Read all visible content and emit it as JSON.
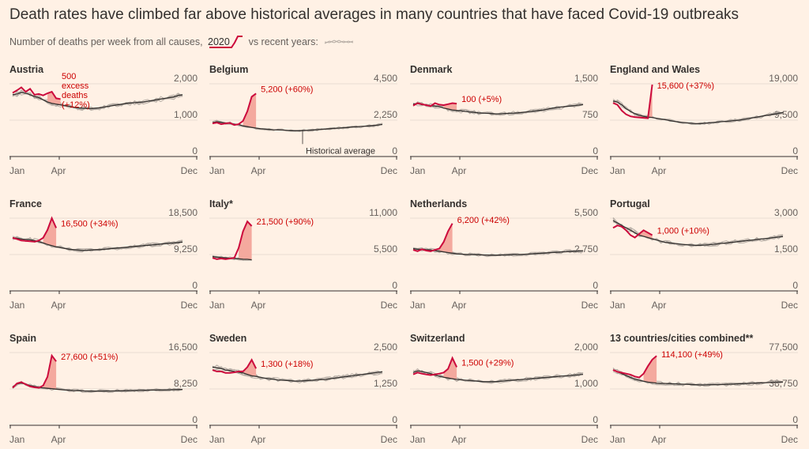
{
  "header": {
    "title": "Death rates have climbed far above historical averages in many countries that have faced Covid-19 outbreaks",
    "subtitle_pre": "Number of deaths per week from all causes,",
    "subtitle_year": "2020",
    "subtitle_post": "vs recent years:"
  },
  "colors": {
    "current": "#cc0a3c",
    "historic": "#b5aca4",
    "average": "#33302e",
    "excess_fill": "#f4a99e",
    "background": "#fff1e5"
  },
  "chart_data": [
    {
      "type": "line",
      "title": "Austria",
      "x_labels": [
        "Jan",
        "Apr",
        "Dec"
      ],
      "ylim": [
        0,
        2000
      ],
      "yticks": [
        "2,000",
        "1,000",
        "0"
      ],
      "annotation": "500\nexcess\ndeaths\n(+12%)",
      "annotation_pos": "top-left",
      "current": [
        1750,
        1820,
        1900,
        1780,
        1860,
        1700,
        1720,
        1680,
        1740,
        1780,
        1600,
        1580
      ],
      "average": [
        1700,
        1720,
        1760,
        1740,
        1700,
        1650,
        1620,
        1560,
        1500,
        1460,
        1440,
        1420,
        1400,
        1380,
        1350,
        1340,
        1330,
        1320,
        1320,
        1330,
        1340,
        1360,
        1380,
        1400,
        1420,
        1440,
        1460,
        1470,
        1480,
        1490,
        1500,
        1520,
        1540,
        1560,
        1580,
        1600,
        1620,
        1640,
        1680,
        1700
      ]
    },
    {
      "type": "line",
      "title": "Belgium",
      "x_labels": [
        "Jan",
        "Apr",
        "Dec"
      ],
      "ylim": [
        0,
        4500
      ],
      "yticks": [
        "4,500",
        "2,250",
        "0"
      ],
      "annotation": "5,200 (+60%)",
      "historic_label": "Historical average",
      "current": [
        2050,
        2100,
        2000,
        2050,
        2080,
        1950,
        2000,
        2200,
        2800,
        3700,
        3900
      ],
      "average": [
        2100,
        2150,
        2120,
        2080,
        2050,
        2000,
        1980,
        1900,
        1850,
        1800,
        1760,
        1720,
        1700,
        1680,
        1660,
        1650,
        1640,
        1620,
        1600,
        1600,
        1600,
        1610,
        1620,
        1640,
        1660,
        1680,
        1700,
        1720,
        1740,
        1760,
        1780,
        1800,
        1820,
        1840,
        1860,
        1880,
        1900,
        1920,
        1950,
        1980
      ]
    },
    {
      "type": "line",
      "title": "Denmark",
      "x_labels": [
        "Jan",
        "Apr",
        "Dec"
      ],
      "ylim": [
        0,
        1500
      ],
      "yticks": [
        "1,500",
        "750",
        "0"
      ],
      "annotation": "100 (+5%)",
      "current": [
        1050,
        1100,
        1080,
        1060,
        1040,
        1100,
        1070,
        1060,
        1080,
        1100,
        1090
      ],
      "average": [
        1080,
        1090,
        1070,
        1060,
        1050,
        1040,
        1030,
        1000,
        980,
        960,
        950,
        940,
        930,
        920,
        910,
        900,
        895,
        890,
        885,
        880,
        880,
        885,
        890,
        895,
        900,
        910,
        920,
        930,
        940,
        950,
        960,
        980,
        1000,
        1010,
        1020,
        1030,
        1040,
        1050,
        1060,
        1070
      ]
    },
    {
      "type": "line",
      "title": "England and Wales",
      "x_labels": [
        "Jan",
        "Apr",
        "Dec"
      ],
      "ylim": [
        0,
        19000
      ],
      "yticks": [
        "19,000",
        "9,500",
        "0"
      ],
      "annotation": "15,600 (+37%)",
      "current": [
        14000,
        13500,
        12000,
        11000,
        10500,
        10300,
        10200,
        10100,
        10000,
        18800
      ],
      "average": [
        14500,
        14200,
        13500,
        12500,
        11800,
        11200,
        10800,
        10500,
        10300,
        10200,
        10000,
        9800,
        9600,
        9400,
        9200,
        9000,
        8900,
        8800,
        8700,
        8600,
        8600,
        8700,
        8800,
        8900,
        9000,
        9100,
        9200,
        9300,
        9400,
        9500,
        9700,
        9900,
        10100,
        10300,
        10500,
        10700,
        10900,
        11100,
        11300,
        11500
      ]
    },
    {
      "type": "line",
      "title": "France",
      "x_labels": [
        "Jan",
        "Apr",
        "Dec"
      ],
      "ylim": [
        0,
        18500
      ],
      "yticks": [
        "18,500",
        "9,250",
        "0"
      ],
      "annotation": "16,500 (+34%)",
      "current": [
        13500,
        13200,
        12800,
        12700,
        12600,
        12500,
        12800,
        13500,
        15500,
        18500,
        16000
      ],
      "average": [
        13500,
        13400,
        13200,
        13100,
        13000,
        12800,
        12500,
        12200,
        11800,
        11500,
        11200,
        11000,
        10800,
        10600,
        10500,
        10400,
        10300,
        10300,
        10400,
        10500,
        10500,
        10600,
        10700,
        10800,
        10900,
        11000,
        11100,
        11200,
        11300,
        11400,
        11500,
        11600,
        11700,
        11800,
        11900,
        12000,
        12100,
        12200,
        12300,
        12400
      ]
    },
    {
      "type": "line",
      "title": "Italy*",
      "x_labels": [
        "Jan",
        "Apr",
        "Dec"
      ],
      "ylim": [
        0,
        11000
      ],
      "yticks": [
        "11,000",
        "5,500",
        "0"
      ],
      "annotation": "21,500 (+90%)",
      "current": [
        5000,
        4800,
        4900,
        4800,
        4900,
        5000,
        6500,
        9000,
        10500,
        9800
      ],
      "average": [
        5200,
        5100,
        5050,
        5000,
        4950,
        4900,
        4850,
        4800,
        4780,
        4700
      ]
    },
    {
      "type": "line",
      "title": "Netherlands",
      "x_labels": [
        "Jan",
        "Apr",
        "Dec"
      ],
      "ylim": [
        0,
        5500
      ],
      "yticks": [
        "5,500",
        "2,750",
        "0"
      ],
      "annotation": "6,200 (+42%)",
      "current": [
        3100,
        3000,
        3150,
        3050,
        3000,
        3100,
        3200,
        3700,
        4500,
        5100
      ],
      "average": [
        3200,
        3150,
        3150,
        3120,
        3100,
        3050,
        3000,
        2950,
        2900,
        2850,
        2800,
        2780,
        2760,
        2750,
        2740,
        2730,
        2720,
        2710,
        2700,
        2700,
        2710,
        2720,
        2730,
        2740,
        2750,
        2760,
        2780,
        2800,
        2820,
        2840,
        2860,
        2880,
        2900,
        2920,
        2940,
        2960,
        2980,
        3000,
        3020,
        3040
      ]
    },
    {
      "type": "line",
      "title": "Portugal",
      "x_labels": [
        "Jan",
        "Apr",
        "Dec"
      ],
      "ylim": [
        0,
        3000
      ],
      "yticks": [
        "3,000",
        "1,500",
        "0"
      ],
      "annotation": "1,000 (+10%)",
      "current": [
        2600,
        2700,
        2650,
        2500,
        2300,
        2200,
        2350,
        2500,
        2400,
        2300
      ],
      "average": [
        2900,
        2800,
        2700,
        2600,
        2500,
        2400,
        2300,
        2250,
        2200,
        2150,
        2100,
        2050,
        2000,
        1980,
        1960,
        1940,
        1920,
        1900,
        1890,
        1880,
        1880,
        1890,
        1900,
        1920,
        1940,
        1960,
        1980,
        2000,
        2020,
        2040,
        2060,
        2080,
        2100,
        2120,
        2140,
        2160,
        2180,
        2200,
        2220,
        2240
      ]
    },
    {
      "type": "line",
      "title": "Spain",
      "x_labels": [
        "Jan",
        "Apr",
        "Dec"
      ],
      "ylim": [
        0,
        16500
      ],
      "yticks": [
        "16,500",
        "8,250",
        "0"
      ],
      "annotation": "27,600 (+51%)",
      "current": [
        8500,
        9500,
        9800,
        9300,
        8800,
        8600,
        8500,
        9000,
        11000,
        15800,
        14500
      ],
      "average": [
        8700,
        9400,
        9600,
        9300,
        9000,
        8800,
        8600,
        8500,
        8400,
        8300,
        8200,
        8100,
        8000,
        7950,
        7900,
        7850,
        7800,
        7780,
        7760,
        7750,
        7750,
        7760,
        7780,
        7800,
        7820,
        7840,
        7860,
        7880,
        7900,
        7920,
        7940,
        7960,
        7980,
        8000,
        8020,
        8040,
        8060,
        8080,
        8100,
        8120
      ]
    },
    {
      "type": "line",
      "title": "Sweden",
      "x_labels": [
        "Jan",
        "Apr",
        "Dec"
      ],
      "ylim": [
        0,
        2500
      ],
      "yticks": [
        "2,500",
        "1,250",
        "0"
      ],
      "annotation": "1,300 (+18%)",
      "current": [
        1900,
        1850,
        1850,
        1800,
        1800,
        1820,
        1850,
        1850,
        2000,
        2250,
        1950
      ],
      "average": [
        2000,
        1980,
        1950,
        1900,
        1880,
        1850,
        1820,
        1800,
        1750,
        1700,
        1680,
        1650,
        1620,
        1600,
        1580,
        1560,
        1550,
        1540,
        1530,
        1520,
        1520,
        1530,
        1540,
        1550,
        1560,
        1570,
        1580,
        1600,
        1620,
        1640,
        1660,
        1680,
        1700,
        1720,
        1740,
        1760,
        1780,
        1800,
        1820,
        1840
      ]
    },
    {
      "type": "line",
      "title": "Switzerland",
      "x_labels": [
        "Jan",
        "Apr",
        "Dec"
      ],
      "ylim": [
        0,
        2000
      ],
      "yticks": [
        "2,000",
        "1,000",
        "0"
      ],
      "annotation": "1,500 (+29%)",
      "current": [
        1400,
        1450,
        1420,
        1400,
        1380,
        1400,
        1420,
        1450,
        1550,
        1850,
        1600
      ],
      "average": [
        1450,
        1500,
        1480,
        1450,
        1420,
        1380,
        1350,
        1320,
        1300,
        1280,
        1260,
        1250,
        1240,
        1230,
        1220,
        1210,
        1200,
        1200,
        1200,
        1200,
        1210,
        1220,
        1230,
        1240,
        1250,
        1260,
        1270,
        1280,
        1290,
        1300,
        1310,
        1320,
        1330,
        1340,
        1350,
        1360,
        1370,
        1380,
        1390,
        1400
      ]
    },
    {
      "type": "line",
      "title": "13 countries/cities combined**",
      "x_labels": [
        "Jan",
        "Apr",
        "Dec"
      ],
      "ylim": [
        0,
        77500
      ],
      "yticks": [
        "77,500",
        "38,750",
        "0"
      ],
      "annotation": "114,100 (+49%)",
      "current": [
        59000,
        57000,
        56000,
        55000,
        54000,
        52000,
        51000,
        55000,
        63000,
        70000,
        74000
      ],
      "average": [
        59000,
        57000,
        55000,
        53000,
        51000,
        49000,
        48000,
        47000,
        46000,
        45500,
        45000,
        44800,
        44600,
        44400,
        44200,
        44000,
        43800,
        43600,
        43400,
        43200,
        43000,
        43000,
        43100,
        43200,
        43300,
        43400,
        43600,
        43800,
        44000,
        44200,
        44400,
        44600,
        44800,
        45000,
        45200,
        45400,
        45600,
        45800,
        46000,
        46200
      ]
    }
  ]
}
